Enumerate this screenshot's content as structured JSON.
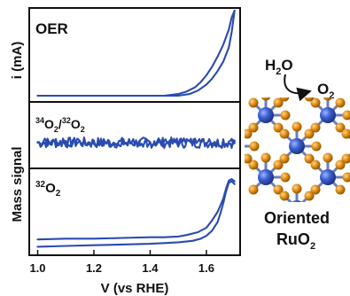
{
  "chart_data": {
    "type": "line",
    "xlabel": "V (vs RHE)",
    "x_ticks": [
      "1.0",
      "1.2",
      "1.4",
      "1.6"
    ],
    "xlim": [
      0.97,
      1.72
    ],
    "y_axis_labels": {
      "top": "i (mA)",
      "bottom": "Mass signal"
    },
    "grid": false,
    "panels": [
      {
        "name": "OER",
        "series": [
          {
            "x": [
              1.0,
              1.1,
              1.2,
              1.3,
              1.4,
              1.45,
              1.5,
              1.54,
              1.57,
              1.6,
              1.62,
              1.64,
              1.66,
              1.68,
              1.69,
              1.7
            ],
            "y": [
              0,
              0,
              0,
              0,
              0,
              0,
              0,
              0.02,
              0.06,
              0.13,
              0.2,
              0.29,
              0.4,
              0.57,
              0.75,
              1.0
            ]
          },
          {
            "x": [
              1.7,
              1.69,
              1.68,
              1.66,
              1.64,
              1.62,
              1.6,
              1.58,
              1.56,
              1.53,
              1.5,
              1.45,
              1.4,
              1.3,
              1.2,
              1.1,
              1.0
            ],
            "y": [
              1.0,
              0.92,
              0.78,
              0.6,
              0.46,
              0.34,
              0.24,
              0.16,
              0.1,
              0.05,
              0.02,
              0,
              0,
              0,
              0,
              0,
              0
            ]
          }
        ]
      },
      {
        "name": "34O2/32O2",
        "trend": "constant, noisy",
        "series": [
          {
            "x": [
              1.0,
              1.7
            ],
            "y": [
              0.5,
              0.5
            ]
          }
        ]
      },
      {
        "name": "32O2",
        "series": [
          {
            "x": [
              1.0,
              1.1,
              1.2,
              1.3,
              1.4,
              1.45,
              1.5,
              1.55,
              1.58,
              1.6,
              1.62,
              1.64,
              1.65,
              1.66,
              1.67,
              1.68,
              1.69,
              1.7
            ],
            "y": [
              0.02,
              0.03,
              0.04,
              0.05,
              0.06,
              0.07,
              0.08,
              0.1,
              0.13,
              0.17,
              0.24,
              0.36,
              0.48,
              0.62,
              0.78,
              0.9,
              0.92,
              0.88
            ]
          },
          {
            "x": [
              1.7,
              1.69,
              1.68,
              1.67,
              1.66,
              1.64,
              1.62,
              1.6,
              1.57,
              1.53,
              1.5,
              1.45,
              1.4,
              1.3,
              1.2,
              1.1,
              1.0
            ],
            "y": [
              0.92,
              0.95,
              0.93,
              0.82,
              0.68,
              0.5,
              0.38,
              0.28,
              0.22,
              0.18,
              0.16,
              0.15,
              0.15,
              0.14,
              0.13,
              0.13,
              0.12
            ]
          }
        ]
      }
    ]
  },
  "panel_labels": {
    "oer": "OER",
    "ratio_pre": "34",
    "ratio_o1": "O",
    "ratio_sub1": "2",
    "ratio_slash": "/",
    "ratio_pre2": "32",
    "ratio_o2": "O",
    "ratio_sub2": "2",
    "o32_pre": "32",
    "o32_o": "O",
    "o32_sub": "2"
  },
  "illustration": {
    "reactant_h": "H",
    "reactant_sub": "2",
    "reactant_o": "O",
    "product_o": "O",
    "product_sub": "2",
    "caption_line1": "Oriented",
    "caption_line2": "RuO",
    "caption_sub": "2",
    "colors": {
      "ru": "#2f56c8",
      "o": "#d98a12",
      "trace": "#2a4bb0"
    }
  }
}
